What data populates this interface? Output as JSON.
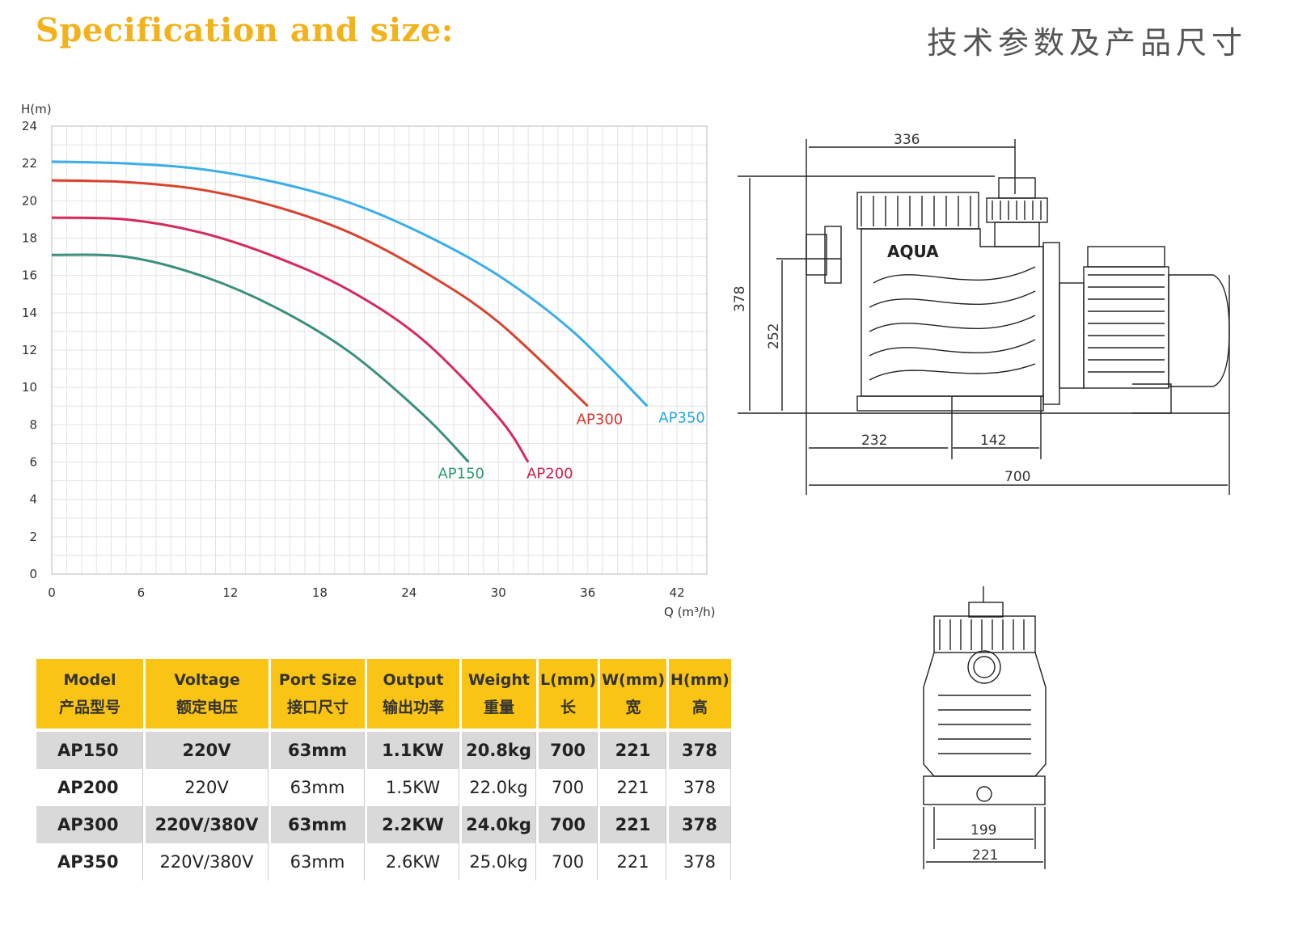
{
  "header": {
    "title_en": "Specification and size:",
    "title_cn": "技术参数及产品尺寸"
  },
  "colors": {
    "accent_yellow": "#f9c414",
    "title_yellow": "#f2b21b",
    "row_shade": "#d9d9d9",
    "grid": "#dddddd"
  },
  "chart_data": {
    "type": "line",
    "title": "",
    "ylabel": "H(m)",
    "xlabel": "Q (m³/h)",
    "xlim": [
      0,
      44
    ],
    "ylim": [
      0,
      24
    ],
    "x_ticks": [
      "0",
      "6",
      "12",
      "18",
      "24",
      "30",
      "36",
      "42"
    ],
    "y_ticks": [
      "0",
      "2",
      "4",
      "6",
      "8",
      "10",
      "12",
      "14",
      "16",
      "18",
      "20",
      "22",
      "24"
    ],
    "grid": true,
    "series": [
      {
        "name": "AP150",
        "color": "#3a8f7d",
        "label_color": "#2a9c6e",
        "x": [
          0,
          5,
          10,
          15,
          20,
          25,
          28
        ],
        "y": [
          17.1,
          17.0,
          16.0,
          14.3,
          11.9,
          8.5,
          6.0
        ]
      },
      {
        "name": "AP200",
        "color": "#d62a5c",
        "label_color": "#d0204c",
        "x": [
          0,
          5,
          10,
          15,
          20,
          25,
          30,
          32
        ],
        "y": [
          19.1,
          19.0,
          18.3,
          17.0,
          15.2,
          12.5,
          8.4,
          6.0
        ]
      },
      {
        "name": "AP300",
        "color": "#d8432e",
        "label_color": "#d8332a",
        "x": [
          0,
          5,
          10,
          15,
          20,
          25,
          30,
          36
        ],
        "y": [
          21.1,
          21.0,
          20.6,
          19.7,
          18.3,
          16.2,
          13.5,
          9.0
        ]
      },
      {
        "name": "AP350",
        "color": "#3aaee6",
        "label_color": "#2aa4e0",
        "x": [
          0,
          5,
          10,
          15,
          20,
          25,
          30,
          35,
          40
        ],
        "y": [
          22.1,
          22.0,
          21.7,
          21.0,
          19.9,
          18.2,
          16.0,
          13.0,
          9.0
        ]
      }
    ]
  },
  "drawing_front": {
    "brand": "AQUA",
    "dimensions": [
      "336",
      "378",
      "252",
      "232",
      "142",
      "700"
    ]
  },
  "drawing_side": {
    "dimensions": [
      "199",
      "221"
    ]
  },
  "spec_table": {
    "headers": [
      {
        "en": "Model",
        "cn": "产品型号"
      },
      {
        "en": "Voltage",
        "cn": "额定电压"
      },
      {
        "en": "Port Size",
        "cn": "接口尺寸"
      },
      {
        "en": "Output",
        "cn": "输出功率"
      },
      {
        "en": "Weight",
        "cn": "重量"
      },
      {
        "en": "L(mm)",
        "cn": "长"
      },
      {
        "en": "W(mm)",
        "cn": "宽"
      },
      {
        "en": "H(mm)",
        "cn": "高"
      }
    ],
    "rows": [
      [
        "AP150",
        "220V",
        "63mm",
        "1.1KW",
        "20.8kg",
        "700",
        "221",
        "378"
      ],
      [
        "AP200",
        "220V",
        "63mm",
        "1.5KW",
        "22.0kg",
        "700",
        "221",
        "378"
      ],
      [
        "AP300",
        "220V/380V",
        "63mm",
        "2.2KW",
        "24.0kg",
        "700",
        "221",
        "378"
      ],
      [
        "AP350",
        "220V/380V",
        "63mm",
        "2.6KW",
        "25.0kg",
        "700",
        "221",
        "378"
      ]
    ]
  }
}
